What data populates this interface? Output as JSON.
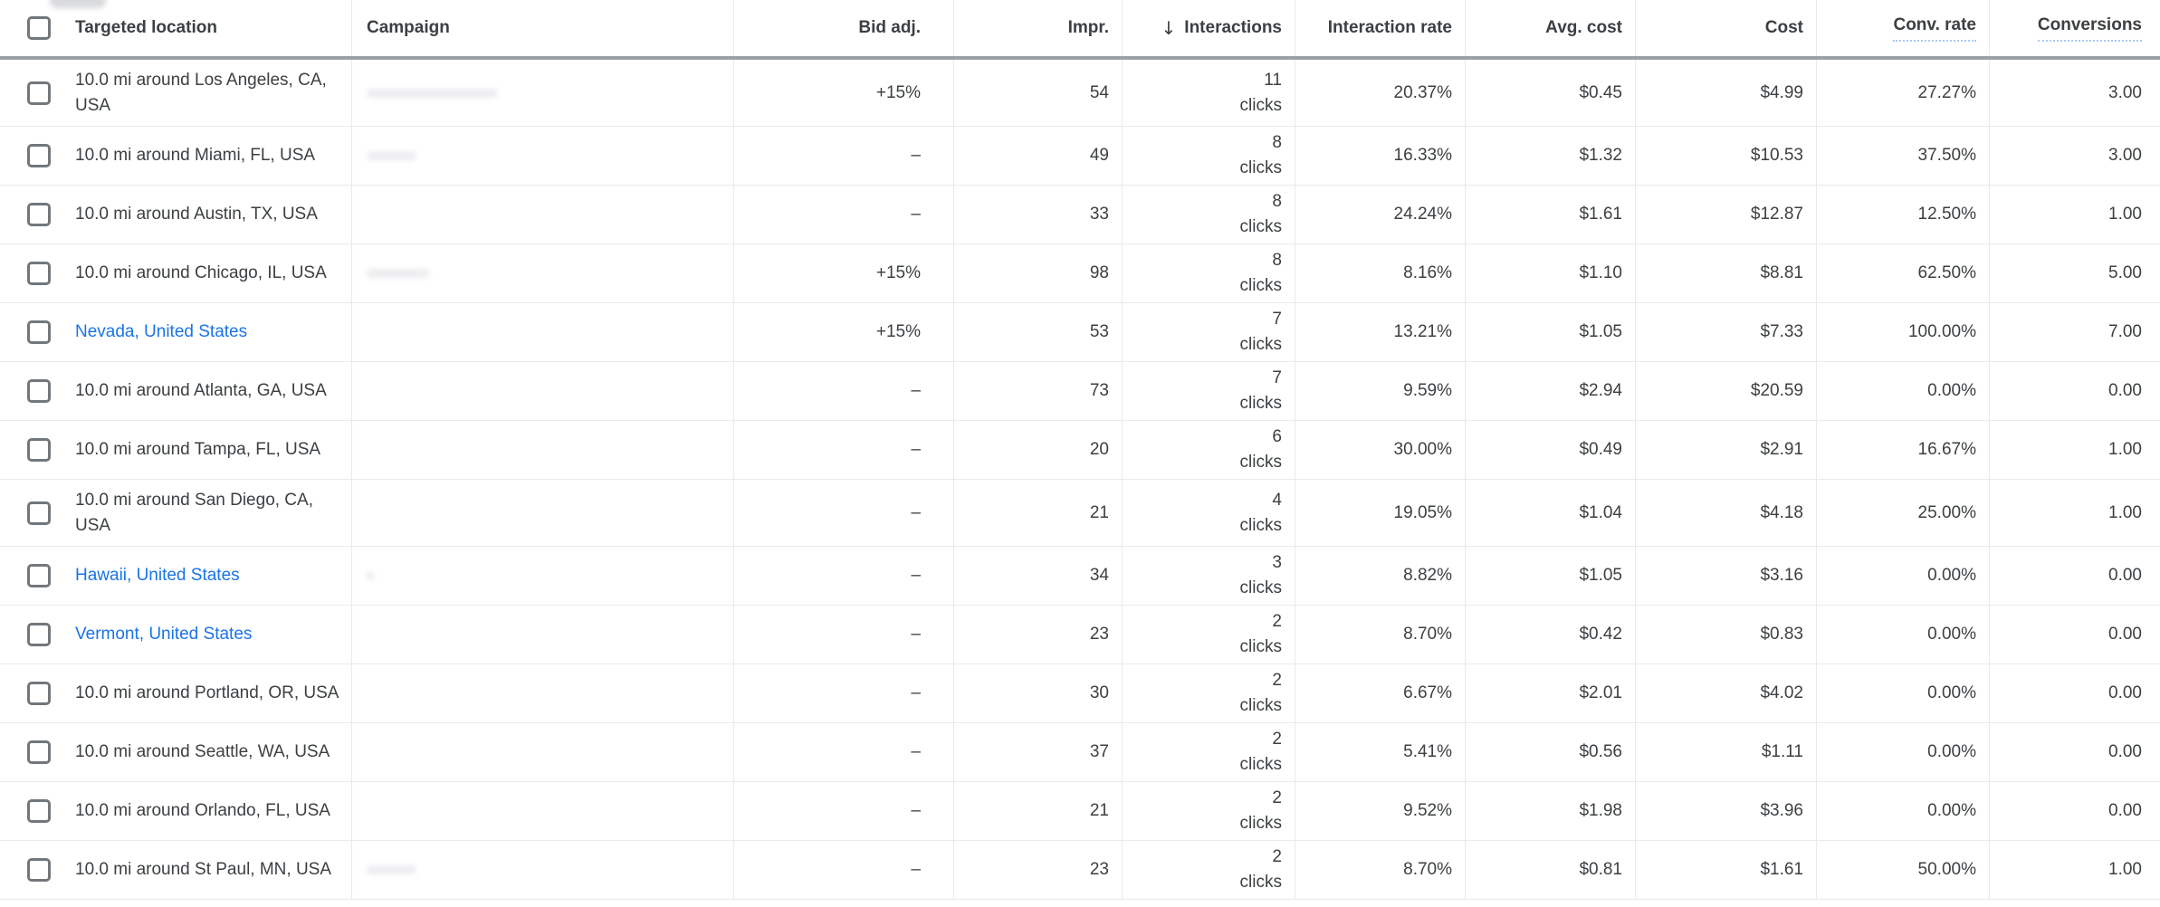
{
  "colors": {
    "link_blue": "#1a73e8",
    "body_text": "#3c4043",
    "row_divider": "#e8eaed",
    "header_divider": "#9aa0a6",
    "tooltip_underline": "#a8c7fa"
  },
  "table": {
    "sort_arrow": "↓",
    "interactions_unit": "clicks",
    "columns": [
      {
        "label": "Targeted location"
      },
      {
        "label": "Campaign"
      },
      {
        "label": "Bid adj."
      },
      {
        "label": "Impr."
      },
      {
        "label": "Interactions",
        "sorted": "descending"
      },
      {
        "label": "Interaction rate"
      },
      {
        "label": "Avg. cost"
      },
      {
        "label": "Cost"
      },
      {
        "label": "Conv. rate",
        "tooltip_underline": true
      },
      {
        "label": "Conversions",
        "tooltip_underline": true
      }
    ],
    "rows": [
      {
        "location": "10.0 mi around Los Angeles, CA, USA",
        "location_is_link": false,
        "two_line": true,
        "campaign": "",
        "campaign_redacted_width": 145,
        "bid_adj": "+15%",
        "impr": "54",
        "interactions": "11",
        "interaction_rate": "20.37%",
        "avg_cost": "$0.45",
        "cost": "$4.99",
        "conv_rate": "27.27%",
        "conversions": "3.00"
      },
      {
        "location": "10.0 mi around Miami, FL, USA",
        "location_is_link": false,
        "two_line": false,
        "campaign": "",
        "campaign_redacted_width": 55,
        "bid_adj": "–",
        "impr": "49",
        "interactions": "8",
        "interaction_rate": "16.33%",
        "avg_cost": "$1.32",
        "cost": "$10.53",
        "conv_rate": "37.50%",
        "conversions": "3.00"
      },
      {
        "location": "10.0 mi around Austin, TX, USA",
        "location_is_link": false,
        "two_line": false,
        "campaign": "",
        "campaign_redacted_width": 0,
        "bid_adj": "–",
        "impr": "33",
        "interactions": "8",
        "interaction_rate": "24.24%",
        "avg_cost": "$1.61",
        "cost": "$12.87",
        "conv_rate": "12.50%",
        "conversions": "1.00"
      },
      {
        "location": "10.0 mi around Chicago, IL, USA",
        "location_is_link": false,
        "two_line": false,
        "campaign": "",
        "campaign_redacted_width": 70,
        "bid_adj": "+15%",
        "impr": "98",
        "interactions": "8",
        "interaction_rate": "8.16%",
        "avg_cost": "$1.10",
        "cost": "$8.81",
        "conv_rate": "62.50%",
        "conversions": "5.00"
      },
      {
        "location": "Nevada, United States",
        "location_is_link": true,
        "two_line": false,
        "campaign": "",
        "campaign_redacted_width": 0,
        "bid_adj": "+15%",
        "impr": "53",
        "interactions": "7",
        "interaction_rate": "13.21%",
        "avg_cost": "$1.05",
        "cost": "$7.33",
        "conv_rate": "100.00%",
        "conversions": "7.00"
      },
      {
        "location": "10.0 mi around Atlanta, GA, USA",
        "location_is_link": false,
        "two_line": false,
        "campaign": "",
        "campaign_redacted_width": 0,
        "bid_adj": "–",
        "impr": "73",
        "interactions": "7",
        "interaction_rate": "9.59%",
        "avg_cost": "$2.94",
        "cost": "$20.59",
        "conv_rate": "0.00%",
        "conversions": "0.00"
      },
      {
        "location": "10.0 mi around Tampa, FL, USA",
        "location_is_link": false,
        "two_line": false,
        "campaign": "",
        "campaign_redacted_width": 0,
        "bid_adj": "–",
        "impr": "20",
        "interactions": "6",
        "interaction_rate": "30.00%",
        "avg_cost": "$0.49",
        "cost": "$2.91",
        "conv_rate": "16.67%",
        "conversions": "1.00"
      },
      {
        "location": "10.0 mi around San Diego, CA, USA",
        "location_is_link": false,
        "two_line": true,
        "campaign": "",
        "campaign_redacted_width": 0,
        "bid_adj": "–",
        "impr": "21",
        "interactions": "4",
        "interaction_rate": "19.05%",
        "avg_cost": "$1.04",
        "cost": "$4.18",
        "conv_rate": "25.00%",
        "conversions": "1.00"
      },
      {
        "location": "Hawaii, United States",
        "location_is_link": true,
        "two_line": false,
        "campaign": "",
        "campaign_redacted_width": 8,
        "bid_adj": "–",
        "impr": "34",
        "interactions": "3",
        "interaction_rate": "8.82%",
        "avg_cost": "$1.05",
        "cost": "$3.16",
        "conv_rate": "0.00%",
        "conversions": "0.00"
      },
      {
        "location": "Vermont, United States",
        "location_is_link": true,
        "two_line": false,
        "campaign": "",
        "campaign_redacted_width": 0,
        "bid_adj": "–",
        "impr": "23",
        "interactions": "2",
        "interaction_rate": "8.70%",
        "avg_cost": "$0.42",
        "cost": "$0.83",
        "conv_rate": "0.00%",
        "conversions": "0.00"
      },
      {
        "location": "10.0 mi around Portland, OR, USA",
        "location_is_link": false,
        "two_line": false,
        "campaign": "",
        "campaign_redacted_width": 0,
        "bid_adj": "–",
        "impr": "30",
        "interactions": "2",
        "interaction_rate": "6.67%",
        "avg_cost": "$2.01",
        "cost": "$4.02",
        "conv_rate": "0.00%",
        "conversions": "0.00"
      },
      {
        "location": "10.0 mi around Seattle, WA, USA",
        "location_is_link": false,
        "two_line": false,
        "campaign": "",
        "campaign_redacted_width": 0,
        "bid_adj": "–",
        "impr": "37",
        "interactions": "2",
        "interaction_rate": "5.41%",
        "avg_cost": "$0.56",
        "cost": "$1.11",
        "conv_rate": "0.00%",
        "conversions": "0.00"
      },
      {
        "location": "10.0 mi around Orlando, FL, USA",
        "location_is_link": false,
        "two_line": false,
        "campaign": "",
        "campaign_redacted_width": 0,
        "bid_adj": "–",
        "impr": "21",
        "interactions": "2",
        "interaction_rate": "9.52%",
        "avg_cost": "$1.98",
        "cost": "$3.96",
        "conv_rate": "0.00%",
        "conversions": "0.00"
      },
      {
        "location": "10.0 mi around St Paul, MN, USA",
        "location_is_link": false,
        "two_line": false,
        "campaign": "",
        "campaign_redacted_width": 55,
        "bid_adj": "–",
        "impr": "23",
        "interactions": "2",
        "interaction_rate": "8.70%",
        "avg_cost": "$0.81",
        "cost": "$1.61",
        "conv_rate": "50.00%",
        "conversions": "1.00"
      }
    ]
  }
}
